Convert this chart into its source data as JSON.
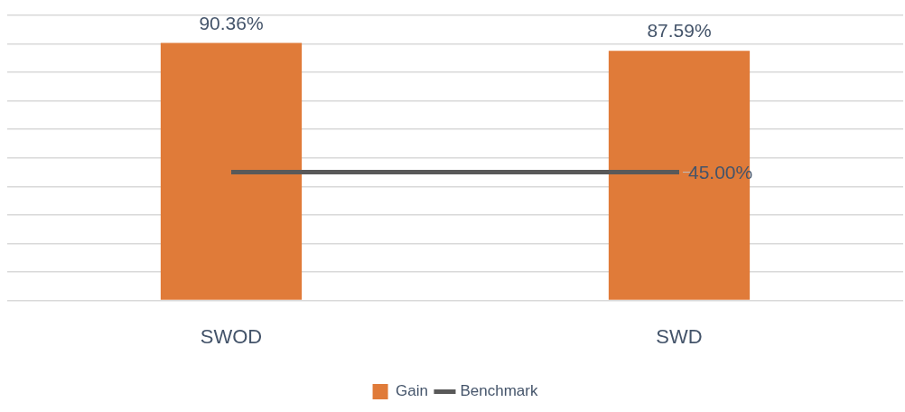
{
  "chart_data": {
    "type": "bar",
    "categories": [
      "SWOD",
      "SWD"
    ],
    "series": [
      {
        "name": "Gain",
        "color": "#e07b39",
        "values": [
          90.36,
          87.59
        ],
        "value_labels": [
          "90.36%",
          "87.59%"
        ]
      },
      {
        "name": "Benchmark",
        "type": "line",
        "color": "#595959",
        "values": [
          45,
          45
        ],
        "value_labels": [
          null,
          "45.00%"
        ]
      }
    ],
    "ylim": [
      0,
      100
    ],
    "yticks": [
      {
        "value": 0,
        "label": null
      },
      {
        "value": 10,
        "label": null
      },
      {
        "value": 20,
        "label": null
      },
      {
        "value": 30,
        "label": null
      },
      {
        "value": 40,
        "label": null
      },
      {
        "value": 50,
        "label": null
      },
      {
        "value": 60,
        "label": null
      },
      {
        "value": 70,
        "label": null
      },
      {
        "value": 80,
        "label": null
      },
      {
        "value": 90,
        "label": null
      },
      {
        "value": 100,
        "label": null
      }
    ],
    "tick_labels": "x",
    "grid": "y",
    "legend": "bottom",
    "marker": "none"
  }
}
